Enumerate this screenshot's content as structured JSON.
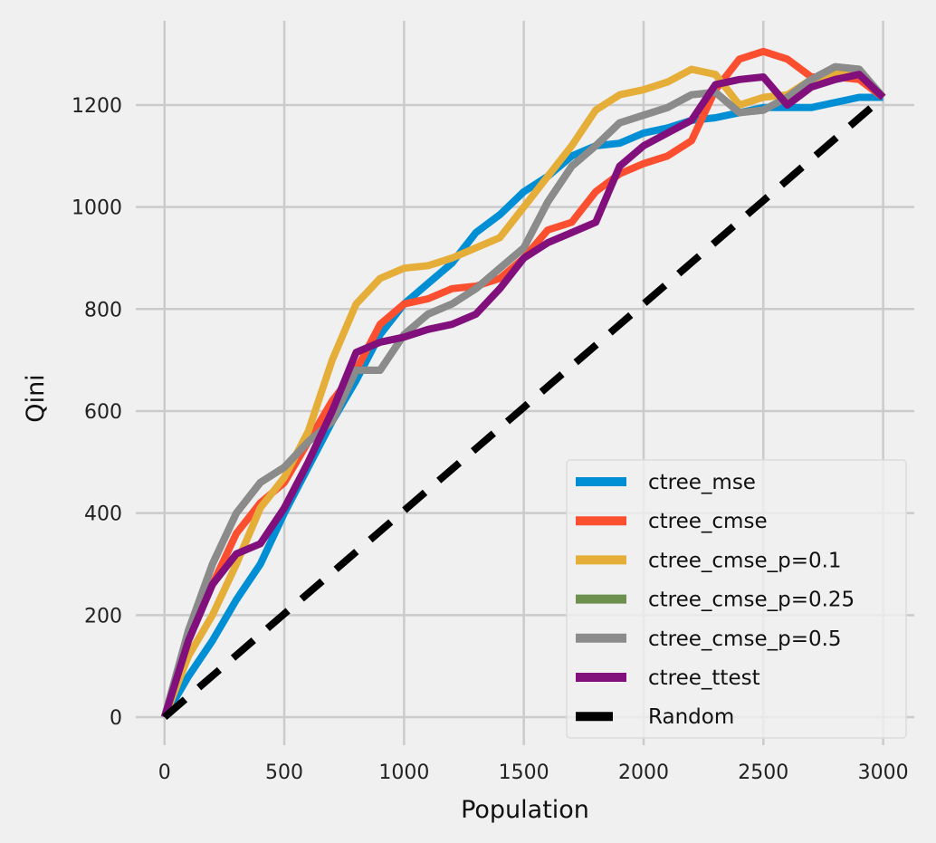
{
  "chart_data": {
    "type": "line",
    "title": "",
    "xlabel": "Population",
    "ylabel": "Qini",
    "xlim": [
      -120,
      3130
    ],
    "ylim": [
      -55,
      1365
    ],
    "xticks": [
      0,
      500,
      1000,
      1500,
      2000,
      2500,
      3000
    ],
    "yticks": [
      0,
      200,
      400,
      600,
      800,
      1000,
      1200
    ],
    "grid": true,
    "legend_position": "bottom-right",
    "x": [
      0,
      100,
      200,
      300,
      400,
      500,
      600,
      700,
      800,
      900,
      1000,
      1100,
      1200,
      1300,
      1400,
      1500,
      1600,
      1700,
      1800,
      1900,
      2000,
      2100,
      2200,
      2300,
      2400,
      2500,
      2600,
      2700,
      2800,
      2900,
      3000
    ],
    "series": [
      {
        "name": "ctree_mse",
        "color": "#008fd5",
        "style": "solid",
        "values": [
          0,
          80,
          150,
          230,
          300,
          400,
          490,
          580,
          660,
          750,
          810,
          850,
          890,
          950,
          985,
          1030,
          1060,
          1100,
          1120,
          1125,
          1145,
          1155,
          1170,
          1175,
          1185,
          1195,
          1195,
          1195,
          1205,
          1215,
          1215
        ]
      },
      {
        "name": "ctree_cmse",
        "color": "#fc4f30",
        "style": "solid",
        "values": [
          0,
          160,
          260,
          360,
          420,
          460,
          540,
          620,
          680,
          770,
          810,
          820,
          840,
          845,
          860,
          900,
          955,
          970,
          1030,
          1065,
          1085,
          1100,
          1130,
          1230,
          1290,
          1305,
          1290,
          1255,
          1255,
          1250,
          1215
        ]
      },
      {
        "name": "ctree_cmse_p=0.1",
        "color": "#e5ae38",
        "style": "solid",
        "values": [
          0,
          120,
          200,
          300,
          410,
          470,
          560,
          700,
          810,
          860,
          880,
          885,
          900,
          920,
          940,
          1000,
          1060,
          1120,
          1190,
          1220,
          1230,
          1245,
          1270,
          1260,
          1200,
          1215,
          1220,
          1250,
          1265,
          1265,
          1215
        ]
      },
      {
        "name": "ctree_cmse_p=0.25",
        "color": "#6d904f",
        "style": "solid",
        "values": [
          0,
          170,
          300,
          400,
          460,
          490,
          540,
          580,
          680,
          680,
          750,
          790,
          810,
          840,
          880,
          920,
          1010,
          1080,
          1120,
          1165,
          1180,
          1195,
          1220,
          1225,
          1185,
          1190,
          1215,
          1250,
          1275,
          1270,
          1215
        ]
      },
      {
        "name": "ctree_cmse_p=0.5",
        "color": "#8b8b8b",
        "style": "solid",
        "values": [
          0,
          170,
          300,
          400,
          460,
          490,
          540,
          580,
          680,
          680,
          750,
          790,
          810,
          840,
          880,
          920,
          1010,
          1080,
          1120,
          1165,
          1180,
          1195,
          1220,
          1225,
          1185,
          1190,
          1215,
          1250,
          1275,
          1270,
          1215
        ]
      },
      {
        "name": "ctree_ttest",
        "color": "#810f7c",
        "style": "solid",
        "values": [
          0,
          150,
          260,
          320,
          340,
          410,
          500,
          600,
          715,
          735,
          745,
          760,
          770,
          790,
          840,
          900,
          930,
          950,
          970,
          1080,
          1120,
          1145,
          1170,
          1240,
          1250,
          1255,
          1200,
          1235,
          1250,
          1260,
          1215
        ]
      },
      {
        "name": "Random",
        "color": "#000000",
        "style": "dashed",
        "values": [
          0,
          40.5,
          81,
          121.5,
          162,
          202.5,
          243,
          283.5,
          324,
          364.5,
          405,
          445.5,
          486,
          526.5,
          567,
          607.5,
          648,
          688.5,
          729,
          769.5,
          810,
          850.5,
          891,
          931.5,
          972,
          1012.5,
          1053,
          1093.5,
          1134,
          1174.5,
          1215
        ]
      }
    ]
  }
}
